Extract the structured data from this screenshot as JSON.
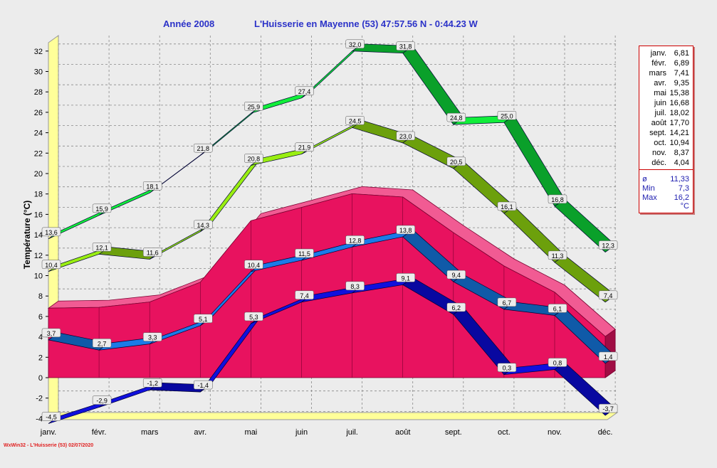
{
  "header": {
    "year_label": "Année  2008",
    "station_label": "L'Huisserie en Mayenne (53) 47:57.56 N - 0:44.23 W"
  },
  "footer": {
    "credit": "WxWin32 - L'Huisserie (53)  02/07/2020"
  },
  "colors": {
    "bg": "#ececec",
    "axis_wall": "#ffff99",
    "max_series": "#11ee3a",
    "max_avg_series": "#99ee11",
    "mean_area": "#e8125f",
    "min_avg_series": "#1b7be8",
    "min_series": "#1010dd",
    "title": "#2b32c8"
  },
  "legend": {
    "months": [
      {
        "m": "janv.",
        "v": "6,81"
      },
      {
        "m": "févr.",
        "v": "6,89"
      },
      {
        "m": "mars",
        "v": "7,41"
      },
      {
        "m": "avr.",
        "v": "9,35"
      },
      {
        "m": "mai",
        "v": "15,38"
      },
      {
        "m": "juin",
        "v": "16,68"
      },
      {
        "m": "juil.",
        "v": "18,02"
      },
      {
        "m": "août",
        "v": "17,70"
      },
      {
        "m": "sept.",
        "v": "14,21"
      },
      {
        "m": "oct.",
        "v": "10,94"
      },
      {
        "m": "nov.",
        "v": "8,37"
      },
      {
        "m": "déc.",
        "v": "4,04"
      }
    ],
    "stats": {
      "avg_label": "ø",
      "avg": "11,33",
      "min_label": "Min",
      "min": "7,3",
      "max_label": "Max",
      "max": "16,2",
      "unit": "°C"
    }
  },
  "chart_data": {
    "type": "area",
    "ylabel": "Température  (°C)",
    "ylim": [
      -4,
      33
    ],
    "y_ticks": [
      -4,
      -2,
      0,
      2,
      4,
      6,
      8,
      10,
      12,
      14,
      16,
      18,
      20,
      22,
      24,
      26,
      28,
      30,
      32
    ],
    "grid": true,
    "legend_position": "right",
    "categories": [
      "janv.",
      "févr.",
      "mars",
      "avr.",
      "mai",
      "juin",
      "juil.",
      "août",
      "sept.",
      "oct.",
      "nov.",
      "déc."
    ],
    "series": [
      {
        "values": [
          13.6,
          15.9,
          18.1,
          21.8,
          25.9,
          27.4,
          32.0,
          31.8,
          24.8,
          25.0,
          16.8,
          12.3
        ],
        "labels": [
          "13,6",
          "15,9",
          "18,1",
          "21,8",
          "25,9",
          "27,4",
          "32,0",
          "31,8",
          "24,8",
          "25,0",
          "16,8",
          "12,3"
        ],
        "color_key": "max_series"
      },
      {
        "values": [
          10.4,
          12.1,
          11.6,
          14.3,
          20.8,
          21.9,
          24.5,
          23.0,
          20.5,
          16.1,
          11.3,
          7.4
        ],
        "labels": [
          "10,4",
          "12,1",
          "11,6",
          "14,3",
          "20,8",
          "21,9",
          "24,5",
          "23,0",
          "20,5",
          "16,1",
          "11,3",
          "7,4"
        ],
        "color_key": "max_avg_series"
      },
      {
        "values": [
          6.81,
          6.89,
          7.41,
          9.35,
          15.38,
          16.68,
          18.02,
          17.7,
          14.21,
          10.94,
          8.37,
          4.04
        ],
        "color_key": "mean_area"
      },
      {
        "values": [
          3.7,
          2.7,
          3.3,
          5.1,
          10.4,
          11.5,
          12.8,
          13.8,
          9.4,
          6.7,
          6.1,
          1.4
        ],
        "labels": [
          "3,7",
          "2,7",
          "3,3",
          "5,1",
          "10,4",
          "11,5",
          "12,8",
          "13,8",
          "9,4",
          "6,7",
          "6,1",
          "1,4"
        ],
        "color_key": "min_avg_series"
      },
      {
        "values": [
          -4.5,
          -2.9,
          -1.2,
          -1.4,
          5.3,
          7.4,
          8.3,
          9.1,
          6.2,
          0.3,
          0.8,
          -3.7
        ],
        "labels": [
          "-4,5",
          "-2,9",
          "-1,2",
          "-1,4",
          "5,3",
          "7,4",
          "8,3",
          "9,1",
          "6,2",
          "0,3",
          "0,8",
          "-3,7"
        ],
        "color_key": "min_series"
      }
    ]
  }
}
